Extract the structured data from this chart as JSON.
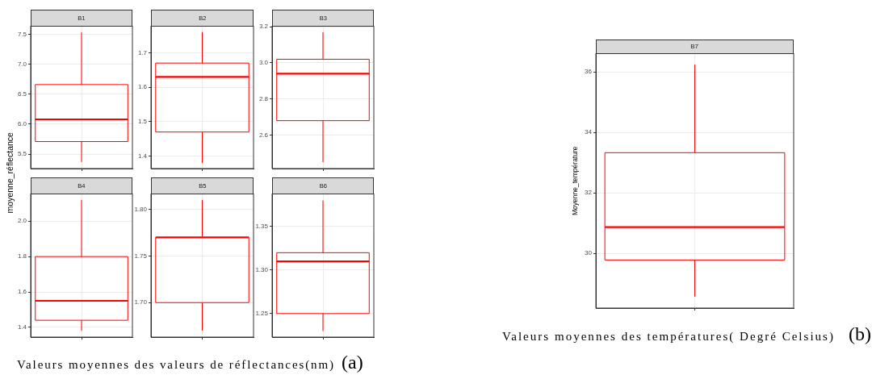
{
  "chart_data": [
    {
      "type": "box",
      "title": "B1",
      "ylabel": "moyenne_réflectance",
      "categories": [
        null
      ],
      "series": [
        {
          "color": "#ff0000",
          "boxes": [
            {
              "low": 5.37,
              "q1": 5.71,
              "median": 6.08,
              "q3": 6.66,
              "high": 7.53
            }
          ]
        }
      ],
      "ylim": [
        5.26,
        7.64
      ],
      "yticks": [
        5.5,
        {
          "value": 6,
          "label": "6.0"
        },
        6.5,
        {
          "value": 7,
          "label": "7.0"
        },
        7.5
      ],
      "grid": true,
      "tick_labels": "y",
      "annotations": [
        "Valeurs moyennes des valeurs de réflectances(nm)",
        "(a)"
      ]
    },
    {
      "type": "box",
      "title": "B2",
      "categories": [
        null
      ],
      "series": [
        {
          "color": "#ff0000",
          "boxes": [
            {
              "low": 1.38,
              "q1": 1.47,
              "median": 1.63,
              "q3": 1.67,
              "high": 1.76
            }
          ]
        }
      ],
      "ylim": [
        1.364,
        1.778
      ],
      "yticks": [
        1.4,
        1.5,
        1.6,
        1.7
      ],
      "grid": true,
      "tick_labels": "y"
    },
    {
      "type": "box",
      "title": "B3",
      "categories": [
        null
      ],
      "series": [
        {
          "color": "#ff0000",
          "boxes": [
            {
              "low": 2.45,
              "q1": 2.68,
              "median": 2.94,
              "q3": 3.02,
              "high": 3.17
            }
          ]
        }
      ],
      "ylim": [
        2.415,
        3.205
      ],
      "yticks": [
        2.6,
        2.8,
        {
          "value": 3,
          "label": "3.0"
        },
        3.2
      ],
      "grid": true,
      "tick_labels": "y"
    },
    {
      "type": "box",
      "title": "B4",
      "categories": [
        null
      ],
      "series": [
        {
          "color": "#ff0000",
          "boxes": [
            {
              "low": 1.38,
              "q1": 1.44,
              "median": 1.55,
              "q3": 1.8,
              "high": 2.12
            }
          ]
        }
      ],
      "ylim": [
        1.345,
        2.156
      ],
      "yticks": [
        1.4,
        1.6,
        1.8,
        {
          "value": 2,
          "label": "2.0"
        }
      ],
      "grid": true,
      "tick_labels": "y"
    },
    {
      "type": "box",
      "title": "B5",
      "categories": [
        null
      ],
      "series": [
        {
          "color": "#ff0000",
          "boxes": [
            {
              "low": 1.67,
              "q1": 1.7,
              "median": 1.77,
              "q3": 1.77,
              "high": 1.81
            }
          ]
        }
      ],
      "ylim": [
        1.663,
        1.817
      ],
      "yticks": [
        {
          "value": 1.7,
          "label": "1.70"
        },
        1.75,
        {
          "value": 1.8,
          "label": "1.80"
        }
      ],
      "grid": true,
      "tick_labels": "y"
    },
    {
      "type": "box",
      "title": "B6",
      "categories": [
        null
      ],
      "series": [
        {
          "color": "#ff0000",
          "boxes": [
            {
              "low": 1.23,
              "q1": 1.25,
              "median": 1.31,
              "q3": 1.32,
              "high": 1.38
            }
          ]
        }
      ],
      "ylim": [
        1.223,
        1.388
      ],
      "yticks": [
        1.25,
        {
          "value": 1.3,
          "label": "1.30"
        },
        1.35
      ],
      "grid": true,
      "tick_labels": "y"
    },
    {
      "type": "box",
      "title": "B7",
      "ylabel": "Moyenne_température",
      "categories": [
        null
      ],
      "series": [
        {
          "color": "#ff0000",
          "boxes": [
            {
              "low": 28.57,
              "q1": 29.78,
              "median": 30.87,
              "q3": 33.33,
              "high": 36.24
            }
          ]
        }
      ],
      "ylim": [
        28.19,
        36.62
      ],
      "yticks": [
        30,
        32,
        34,
        36
      ],
      "grid": true,
      "tick_labels": "y",
      "annotations": [
        "Valeurs moyennes des températures( Degré Celsius)",
        "(b)"
      ]
    }
  ]
}
